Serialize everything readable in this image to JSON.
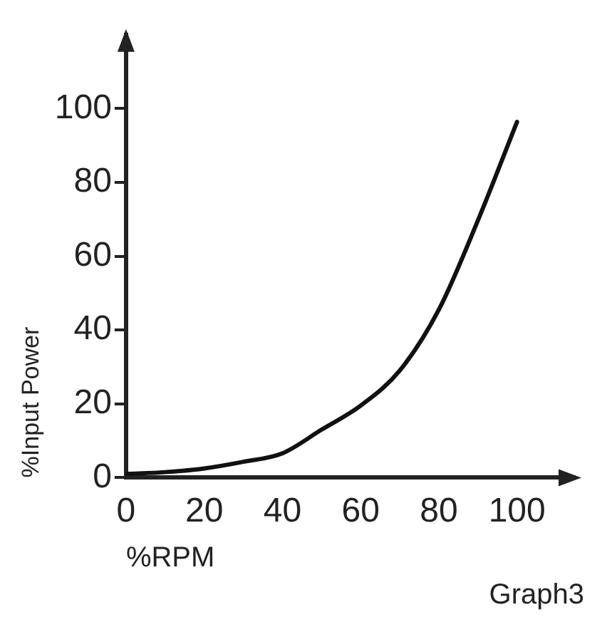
{
  "chart_data": {
    "type": "line",
    "xlabel": "%RPM",
    "ylabel": "%Input Power",
    "x": [
      0,
      10,
      20,
      30,
      40,
      50,
      60,
      70,
      80,
      90,
      100
    ],
    "series": [
      {
        "color": "#111111",
        "values": [
          1,
          1.5,
          2.5,
          4.3,
          6.6,
          13,
          19.5,
          29,
          45.5,
          69.7,
          96.4
        ]
      }
    ],
    "xlim": [
      0,
      115
    ],
    "ylim": [
      0,
      120
    ],
    "xticks": [
      0,
      20,
      40,
      60,
      80,
      100
    ],
    "yticks": [
      0,
      20,
      40,
      60,
      80,
      100
    ],
    "grid": false,
    "legend": false,
    "marker": "none",
    "line_style": "solid",
    "annotations": [
      "Graph3"
    ]
  }
}
